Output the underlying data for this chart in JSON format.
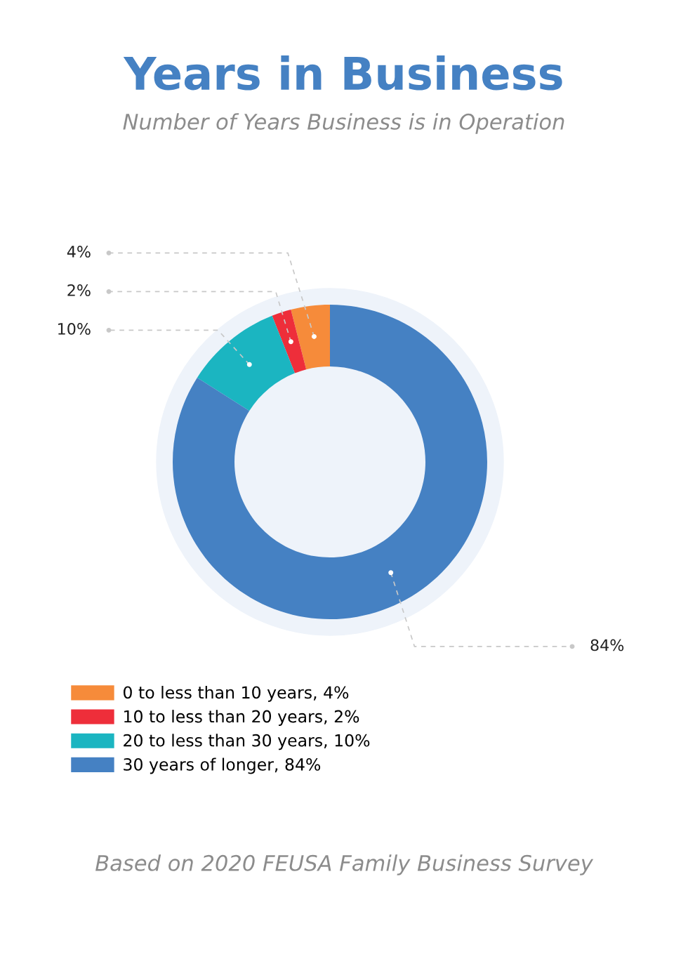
{
  "chart_data": {
    "type": "donut",
    "title": "Years in Business",
    "subtitle": "Number of Years Business is in Operation",
    "categories": [
      "0 to less than 10 years, 4%",
      "10 to less than 20 years, 2%",
      "20 to less than 30 years, 10%",
      "30 years of longer, 84%"
    ],
    "values": [
      4,
      2,
      10,
      84
    ],
    "colors": [
      "#f68b3a",
      "#ee2e3a",
      "#1bb5c1",
      "#4581c3"
    ],
    "value_labels": [
      "4%",
      "2%",
      "10%",
      "84%"
    ],
    "legend": "bottom",
    "annotations": [
      "Based on 2020 FEUSA Family Business Survey"
    ]
  }
}
